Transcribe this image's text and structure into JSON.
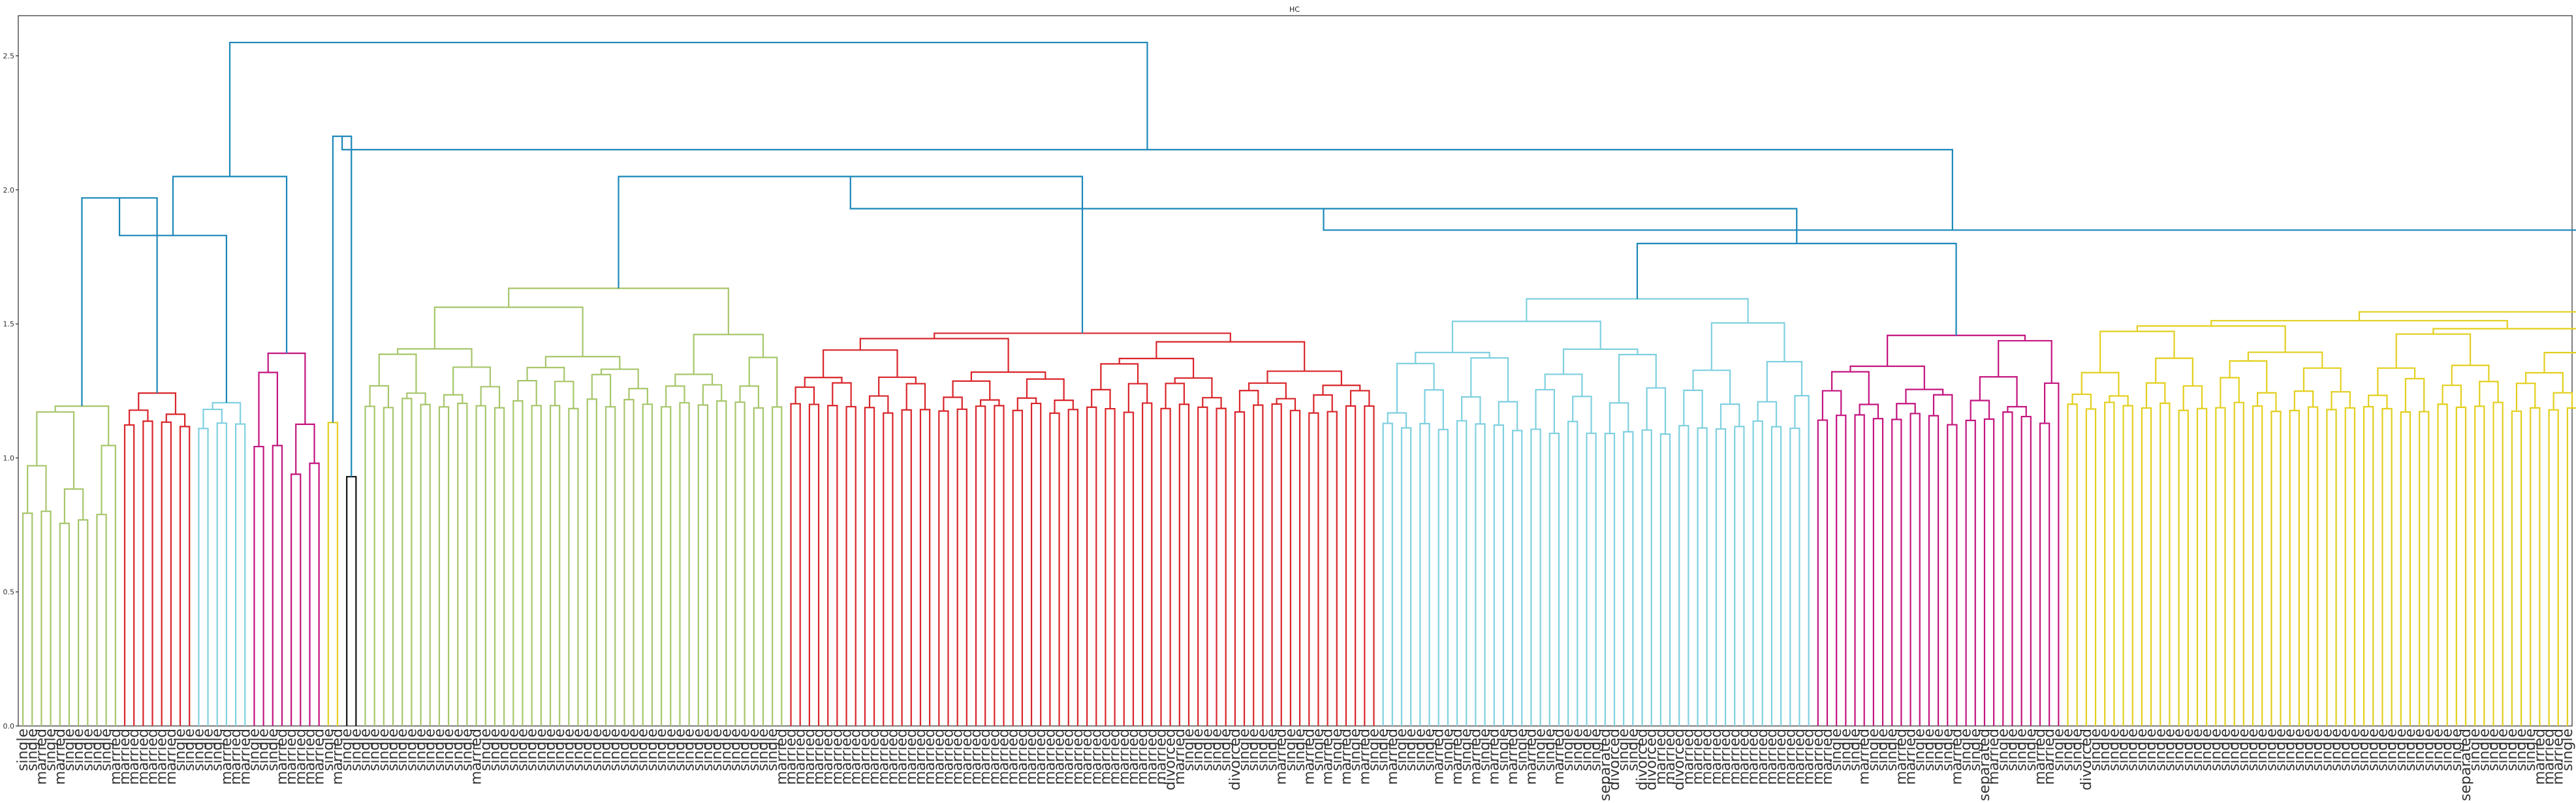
{
  "chart_data": {
    "type": "dendrogram",
    "title": "HC",
    "xlabel": "",
    "ylabel": "",
    "ylim": [
      0,
      2.65
    ],
    "yticks": [
      0.0,
      0.5,
      1.0,
      1.5,
      2.0,
      2.5
    ],
    "ytick_labels": [
      "0.0",
      "0.5",
      "1.0",
      "1.5",
      "2.0",
      "2.5"
    ],
    "grid": false,
    "legend": "none",
    "palette": {
      "green": "#a7c66b",
      "red": "#d9252a",
      "cyan": "#7fd0e0",
      "magenta": "#c3147f",
      "yellow": "#e3cf1e",
      "black": "#111111",
      "link": "#1a87b8",
      "axis": "#000000"
    },
    "leaves": [
      "single",
      "single",
      "married",
      "single",
      "married",
      "single",
      "single",
      "single",
      "single",
      "single",
      "married",
      "married",
      "married",
      "married",
      "married",
      "married",
      "married",
      "single",
      "single",
      "single",
      "single",
      "single",
      "married",
      "married",
      "married",
      "single",
      "single",
      "single",
      "married",
      "married",
      "married",
      "married",
      "married",
      "single",
      "married",
      "single",
      "single",
      "single",
      "single",
      "single",
      "single",
      "single",
      "single",
      "single",
      "single",
      "single",
      "single",
      "single",
      "single",
      "married",
      "single",
      "single",
      "single",
      "single",
      "single",
      "single",
      "single",
      "single",
      "single",
      "single",
      "single",
      "single",
      "single",
      "single",
      "single",
      "single",
      "single",
      "single",
      "single",
      "single",
      "single",
      "single",
      "single",
      "single",
      "single",
      "single",
      "single",
      "single",
      "single",
      "single",
      "single",
      "single",
      "married",
      "married",
      "married",
      "married",
      "married",
      "married",
      "married",
      "married",
      "married",
      "married",
      "married",
      "married",
      "married",
      "married",
      "married",
      "married",
      "married",
      "married",
      "married",
      "married",
      "married",
      "married",
      "married",
      "married",
      "married",
      "married",
      "married",
      "married",
      "married",
      "married",
      "married",
      "married",
      "married",
      "married",
      "married",
      "married",
      "married",
      "married",
      "married",
      "married",
      "married",
      "married",
      "divorced",
      "married",
      "single",
      "single",
      "single",
      "single",
      "single",
      "divorced",
      "single",
      "single",
      "single",
      "single",
      "married",
      "single",
      "single",
      "married",
      "single",
      "married",
      "single",
      "married",
      "single",
      "married",
      "single",
      "single",
      "married",
      "single",
      "single",
      "single",
      "single",
      "married",
      "single",
      "married",
      "single",
      "married",
      "single",
      "married",
      "single",
      "married",
      "single",
      "married",
      "single",
      "single",
      "married",
      "single",
      "single",
      "single",
      "single",
      "separated",
      "divorced",
      "single",
      "single",
      "divorced",
      "divorced",
      "married",
      "married",
      "divorced",
      "married",
      "married",
      "married",
      "married",
      "married",
      "married",
      "married",
      "married",
      "married",
      "married",
      "married",
      "married",
      "married",
      "married",
      "married",
      "married",
      "single",
      "single",
      "single",
      "married",
      "single",
      "single",
      "single",
      "married",
      "married",
      "single",
      "single",
      "single",
      "single",
      "married",
      "single",
      "single",
      "separated",
      "married",
      "single",
      "single",
      "single",
      "single",
      "married",
      "married",
      "single",
      "single",
      "single",
      "divorced",
      "single",
      "single",
      "single",
      "single",
      "single",
      "single",
      "single",
      "single",
      "single",
      "single",
      "single",
      "single",
      "single",
      "single",
      "single",
      "single",
      "single",
      "single",
      "single",
      "single",
      "single",
      "single",
      "single",
      "single",
      "single",
      "single",
      "single",
      "single",
      "single",
      "single",
      "single",
      "single",
      "single",
      "single",
      "single",
      "single",
      "single",
      "single",
      "single",
      "single",
      "separated",
      "single",
      "single",
      "single",
      "single",
      "single",
      "single",
      "single",
      "married",
      "married",
      "married",
      "single"
    ],
    "clusters": [
      {
        "color": "green",
        "count": 11,
        "base": 1.4,
        "min": 0.62,
        "spread": 0.78
      },
      {
        "color": "red",
        "count": 8,
        "base": 1.27,
        "min": 1.08,
        "spread": 0.19
      },
      {
        "color": "cyan",
        "count": 6,
        "base": 1.33,
        "min": 1.04,
        "spread": 0.29
      },
      {
        "color": "magenta",
        "count": 8,
        "base": 1.61,
        "min": 0.77,
        "spread": 0.84
      },
      {
        "color": "yellow",
        "count": 2,
        "base": 1.31,
        "min": 0.43,
        "spread": 0.88
      },
      {
        "color": "black",
        "count": 2,
        "base": 0.93,
        "min": 0.93,
        "spread": 0.0
      },
      {
        "color": "green",
        "count": 46,
        "base": 1.64,
        "min": 1.13,
        "spread": 0.51
      },
      {
        "color": "red",
        "count": 64,
        "base": 1.63,
        "min": 1.12,
        "spread": 0.51
      },
      {
        "color": "cyan",
        "count": 47,
        "base": 1.7,
        "min": 1.02,
        "spread": 0.68
      },
      {
        "color": "magenta",
        "count": 27,
        "base": 1.59,
        "min": 1.06,
        "spread": 0.53
      },
      {
        "color": "yellow",
        "count": 96,
        "base": 1.72,
        "min": 1.12,
        "spread": 0.6
      }
    ],
    "upper_links": [
      {
        "left": 0,
        "right": 1,
        "height": 1.97
      },
      {
        "left": "m0-1",
        "right": 2,
        "height": 1.83
      },
      {
        "left": "m0-1-2",
        "right": 3,
        "height": 2.05
      },
      {
        "left": 4,
        "right": 5,
        "height": 2.2
      },
      {
        "left": 6,
        "right": 7,
        "height": 2.05
      },
      {
        "left": 8,
        "right": 9,
        "height": 1.8
      },
      {
        "left": "m6-7",
        "right": "m8-9",
        "height": 1.93
      },
      {
        "left": "m6-9",
        "right": 10,
        "height": 1.85
      },
      {
        "left": "m6-10",
        "right": "m4-5",
        "height": 2.15
      },
      {
        "left": "main-left",
        "right": "m4-10",
        "height": 2.55
      }
    ]
  }
}
